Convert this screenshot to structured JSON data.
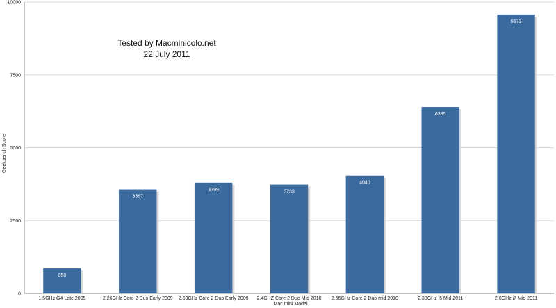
{
  "chart_data": {
    "type": "bar",
    "categories": [
      "1.5GHz G4 Late 2005",
      "2.26GHz Core 2 Duo Early 2009",
      "2.53GHz Core 2 Duo Early 2009",
      "2.4GHZ Core 2 Duo  Mid 2010",
      "2.66GHz Core 2 Duo mid 2010",
      "2.30GHz i5 Mid 2011",
      "2.0GHz i7 Mid 2011"
    ],
    "values": [
      858,
      3567,
      3799,
      3733,
      4040,
      6395,
      9573
    ],
    "data_labels": [
      "858",
      "3567",
      "3799",
      "3733",
      "4040",
      "6395",
      "9573"
    ],
    "xlabel": "Mac mini Model",
    "ylabel": "Geekbench Score",
    "ylim": [
      0,
      10000
    ],
    "yticks": [
      0,
      2500,
      5000,
      7500,
      10000
    ],
    "ytick_labels": [
      "0",
      "2500",
      "5000",
      "7500",
      "10000"
    ],
    "grid": true,
    "annotations": [
      "Tested by Macminicolo.net",
      "22 July 2011"
    ],
    "colors": {
      "bar": "#3b6a9f",
      "bar_shadow": "#c8c8c8",
      "grid": "#d9d9d9",
      "axis": "#888888",
      "label_inside": "#ffffff",
      "text": "#222222"
    }
  }
}
